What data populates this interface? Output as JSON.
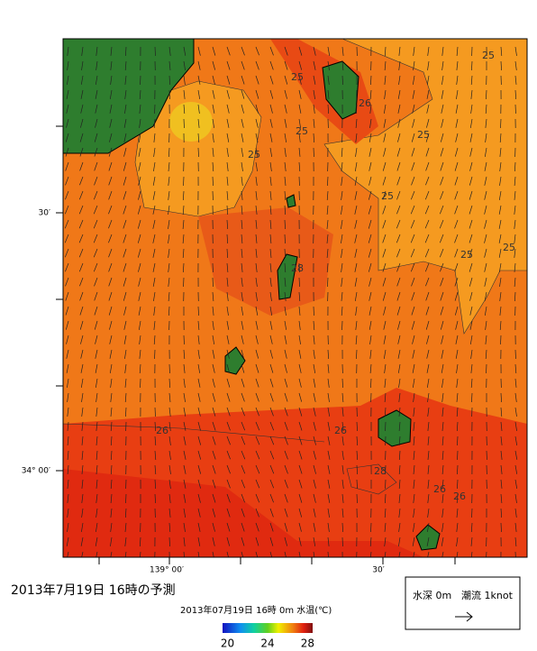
{
  "map": {
    "title": "2013年7月19日 16時の予測",
    "subtitle": "2013年07月19日 16時 0m 水温(℃)",
    "lat_labels": [
      "30′",
      "34° 00′"
    ],
    "lon_labels": [
      "139° 00′",
      "30′"
    ],
    "contour_labels": [
      25,
      25,
      25,
      25,
      25,
      25,
      25,
      25,
      26,
      26,
      26,
      26,
      26,
      28,
      28
    ],
    "colorbar": {
      "lim": [
        19.5,
        28.5
      ],
      "ticks": [
        20,
        24,
        28
      ]
    },
    "legend": {
      "depth": "水深 0m",
      "current": "潮流 1knot"
    }
  }
}
